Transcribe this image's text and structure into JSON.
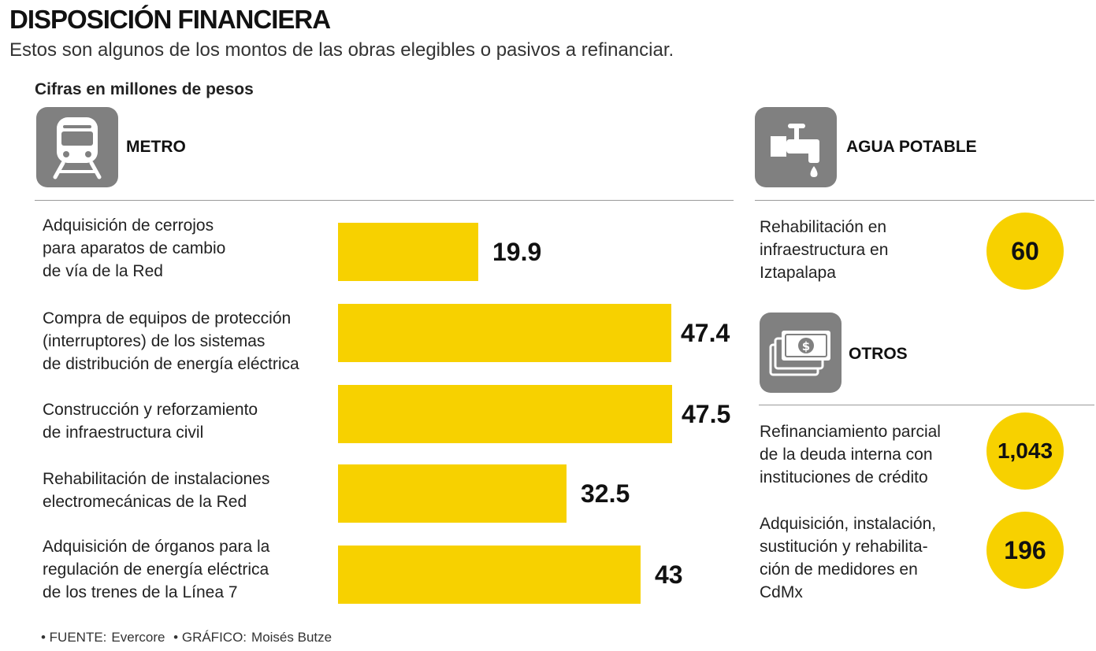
{
  "title": "DISPOSICIÓN FINANCIERA",
  "subtitle": "Estos son algunos de los montos de las obras elegibles o pasivos a refinanciar.",
  "units_note": "Cifras en millones de pesos",
  "colors": {
    "bar": "#f7d100",
    "icon_bg": "#808080",
    "rule": "#9a9a9a"
  },
  "sections": {
    "metro": {
      "label": "METRO",
      "icon": "train-icon"
    },
    "agua": {
      "label": "AGUA POTABLE",
      "icon": "water-tap-icon"
    },
    "otros": {
      "label": "OTROS",
      "icon": "money-icon"
    }
  },
  "chart_data": [
    {
      "type": "bar",
      "orientation": "horizontal",
      "section": "METRO",
      "categories": [
        "Adquisición de cerrojos para aparatos de cambio de vía de la Red",
        "Compra de equipos de protección (interruptores) de los sistemas de distribución de energía eléctrica",
        "Construcción y reforzamiento de infraestructura civil",
        "Rehabilitación de instalaciones electromecánicas de la Red",
        "Adquisición de órganos para la regulación de energía eléctrica de los trenes de la Línea 7"
      ],
      "category_lines": [
        [
          "Adquisición de cerrojos",
          "para aparatos de cambio",
          "de vía de la Red"
        ],
        [
          "Compra de equipos de protección",
          "(interruptores) de los sistemas",
          "de distribución de energía eléctrica"
        ],
        [
          "Construcción y reforzamiento",
          "de infraestructura civil"
        ],
        [
          "Rehabilitación de instalaciones",
          "electromecánicas de la Red"
        ],
        [
          "Adquisición de órganos para la",
          "regulación de energía eléctrica",
          "de los trenes de la Línea 7"
        ]
      ],
      "values": [
        19.9,
        47.4,
        47.5,
        32.5,
        43
      ],
      "value_labels": [
        "19.9",
        "47.4",
        "47.5",
        "32.5",
        "43"
      ],
      "xlim": [
        0,
        47.5
      ]
    },
    {
      "type": "table",
      "section": "AGUA POTABLE",
      "rows": [
        {
          "label_lines": [
            "Rehabilitación en",
            "infraestructura en",
            "Iztapalapa"
          ],
          "value": 60,
          "value_label": "60"
        }
      ]
    },
    {
      "type": "table",
      "section": "OTROS",
      "rows": [
        {
          "label_lines": [
            "Refinanciamiento parcial",
            "de la deuda interna con",
            "instituciones de crédito"
          ],
          "value": 1043,
          "value_label": "1,043"
        },
        {
          "label_lines": [
            "Adquisición, instalación,",
            "sustitución y rehabilita-",
            "ción de medidores en",
            "CdMx"
          ],
          "value": 196,
          "value_label": "196"
        }
      ]
    }
  ],
  "footer": {
    "source_prefix": "• FUENTE:",
    "source": "Evercore",
    "credit_prefix": "• GRÁFICO:",
    "credit": "Moisés Butze"
  }
}
